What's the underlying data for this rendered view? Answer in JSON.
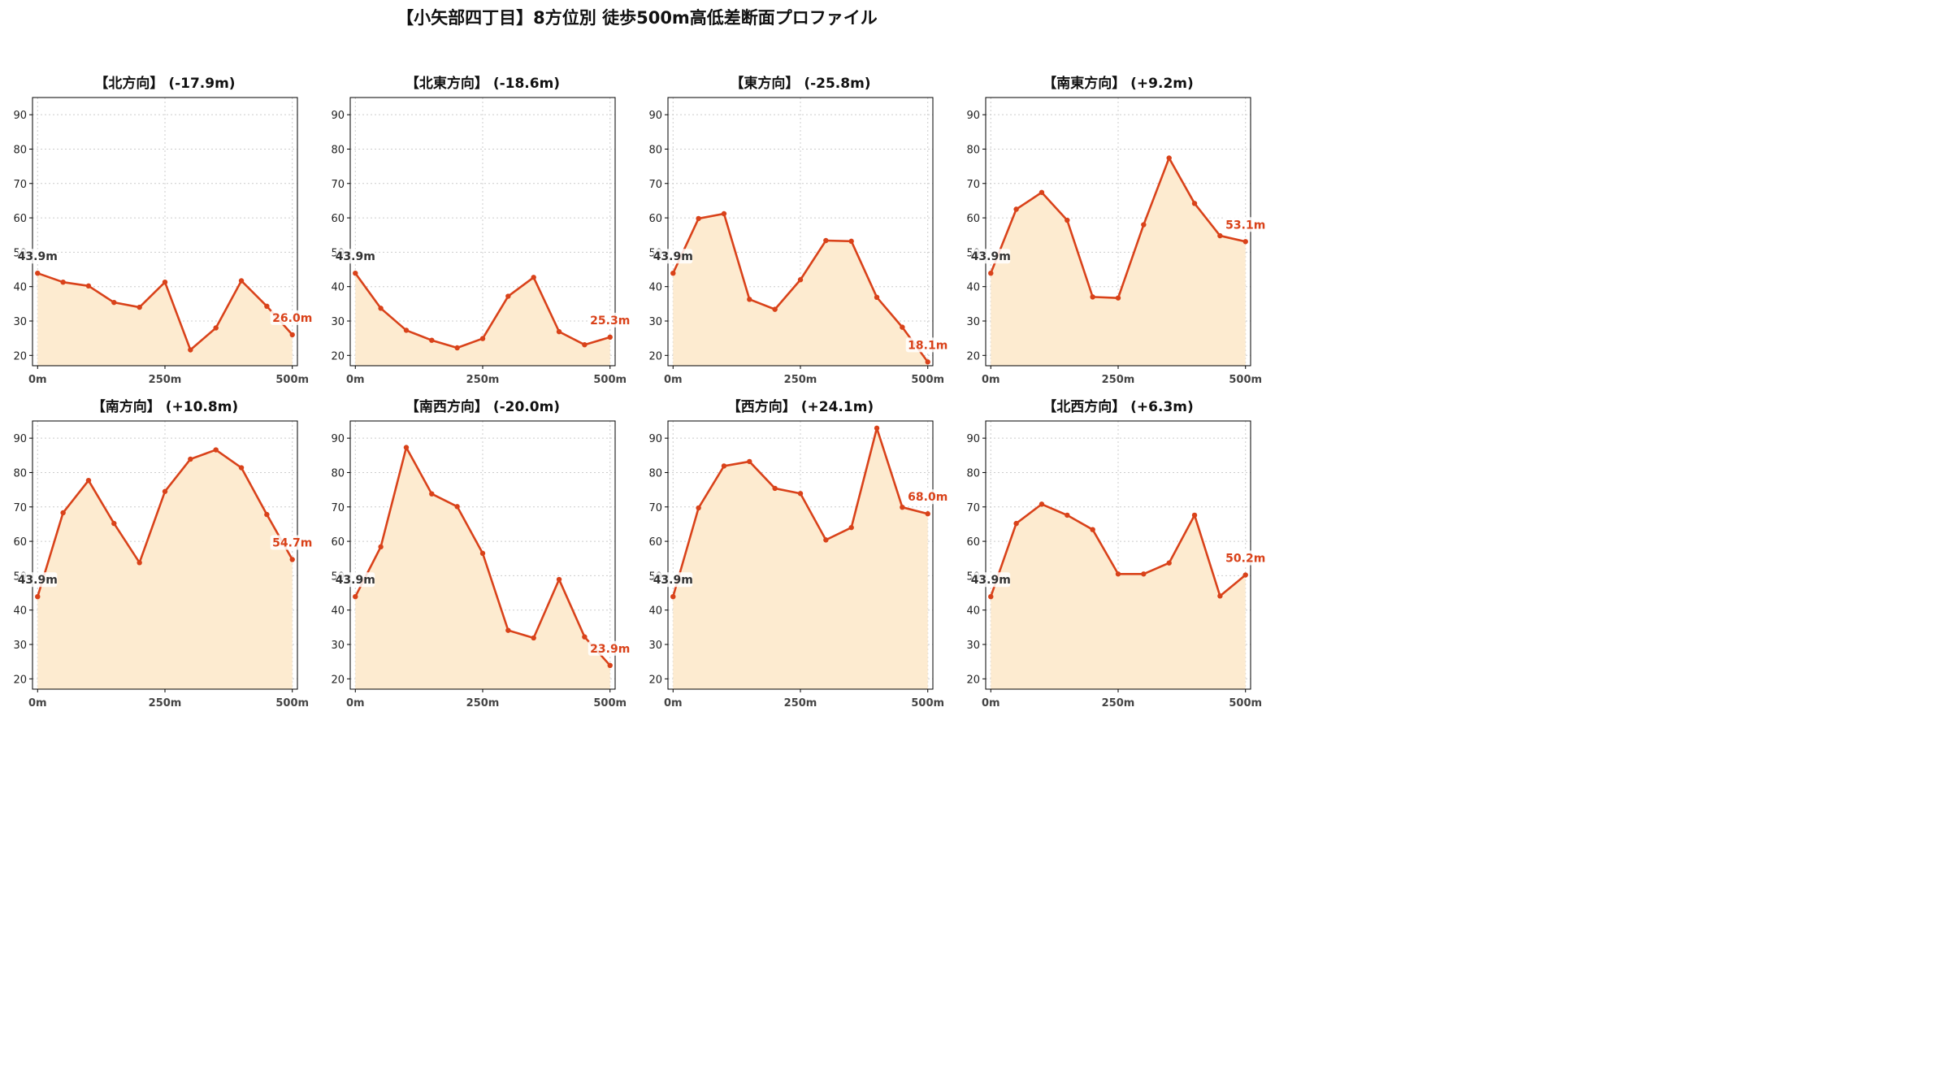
{
  "page": {
    "title": "【小矢部四丁目】8方位別 徒歩500m高低差断面プロファイル"
  },
  "colors": {
    "line": "#d9421a",
    "fill": "#fdebd0",
    "start_label": "#333333",
    "end_label": "#d9421a",
    "grid": "#cccccc"
  },
  "chart_data": [
    {
      "type": "area",
      "title": "【北方向】 (-17.9m)",
      "x": [
        0,
        50,
        100,
        150,
        200,
        250,
        300,
        350,
        400,
        450,
        500
      ],
      "x_ticks": [
        "0m",
        "250m",
        "500m"
      ],
      "x_tick_values": [
        0,
        250,
        500
      ],
      "y_ticks": [
        20,
        30,
        40,
        50,
        60,
        70,
        80,
        90
      ],
      "ylim": [
        17,
        95
      ],
      "xlim": [
        -10,
        510
      ],
      "grid": true,
      "values": [
        43.9,
        41.3,
        40.2,
        35.4,
        34.0,
        41.3,
        21.6,
        28.0,
        41.7,
        34.3,
        26.0
      ],
      "start_label": "43.9m",
      "end_label": "26.0m"
    },
    {
      "type": "area",
      "title": "【北東方向】 (-18.6m)",
      "x": [
        0,
        50,
        100,
        150,
        200,
        250,
        300,
        350,
        400,
        450,
        500
      ],
      "x_ticks": [
        "0m",
        "250m",
        "500m"
      ],
      "x_tick_values": [
        0,
        250,
        500
      ],
      "y_ticks": [
        20,
        30,
        40,
        50,
        60,
        70,
        80,
        90
      ],
      "ylim": [
        17,
        95
      ],
      "xlim": [
        -10,
        510
      ],
      "grid": true,
      "values": [
        43.9,
        33.7,
        27.3,
        24.4,
        22.2,
        24.9,
        37.2,
        42.7,
        26.9,
        23.1,
        25.3
      ],
      "start_label": "43.9m",
      "end_label": "25.3m"
    },
    {
      "type": "area",
      "title": "【東方向】 (-25.8m)",
      "x": [
        0,
        50,
        100,
        150,
        200,
        250,
        300,
        350,
        400,
        450,
        500
      ],
      "x_ticks": [
        "0m",
        "250m",
        "500m"
      ],
      "x_tick_values": [
        0,
        250,
        500
      ],
      "y_ticks": [
        20,
        30,
        40,
        50,
        60,
        70,
        80,
        90
      ],
      "ylim": [
        17,
        95
      ],
      "xlim": [
        -10,
        510
      ],
      "grid": true,
      "values": [
        43.9,
        59.8,
        61.2,
        36.3,
        33.4,
        42.0,
        53.4,
        53.2,
        36.9,
        28.2,
        18.1
      ],
      "start_label": "43.9m",
      "end_label": "18.1m"
    },
    {
      "type": "area",
      "title": "【南東方向】 (+9.2m)",
      "x": [
        0,
        50,
        100,
        150,
        200,
        250,
        300,
        350,
        400,
        450,
        500
      ],
      "x_ticks": [
        "0m",
        "250m",
        "500m"
      ],
      "x_tick_values": [
        0,
        250,
        500
      ],
      "y_ticks": [
        20,
        30,
        40,
        50,
        60,
        70,
        80,
        90
      ],
      "ylim": [
        17,
        95
      ],
      "xlim": [
        -10,
        510
      ],
      "grid": true,
      "values": [
        43.9,
        62.5,
        67.4,
        59.3,
        37.0,
        36.7,
        58.0,
        77.4,
        64.2,
        54.8,
        53.1
      ],
      "start_label": "43.9m",
      "end_label": "53.1m"
    },
    {
      "type": "area",
      "title": "【南方向】 (+10.8m)",
      "x": [
        0,
        50,
        100,
        150,
        200,
        250,
        300,
        350,
        400,
        450,
        500
      ],
      "x_ticks": [
        "0m",
        "250m",
        "500m"
      ],
      "x_tick_values": [
        0,
        250,
        500
      ],
      "y_ticks": [
        20,
        30,
        40,
        50,
        60,
        70,
        80,
        90
      ],
      "ylim": [
        17,
        95
      ],
      "xlim": [
        -10,
        510
      ],
      "grid": true,
      "values": [
        43.9,
        68.3,
        77.7,
        65.2,
        53.8,
        74.5,
        83.9,
        86.6,
        81.4,
        67.8,
        54.7
      ],
      "start_label": "43.9m",
      "end_label": "54.7m"
    },
    {
      "type": "area",
      "title": "【南西方向】 (-20.0m)",
      "x": [
        0,
        50,
        100,
        150,
        200,
        250,
        300,
        350,
        400,
        450,
        500
      ],
      "x_ticks": [
        "0m",
        "250m",
        "500m"
      ],
      "x_tick_values": [
        0,
        250,
        500
      ],
      "y_ticks": [
        20,
        30,
        40,
        50,
        60,
        70,
        80,
        90
      ],
      "ylim": [
        17,
        95
      ],
      "xlim": [
        -10,
        510
      ],
      "grid": true,
      "values": [
        43.9,
        58.4,
        87.3,
        73.8,
        70.1,
        56.5,
        34.1,
        31.9,
        48.9,
        32.2,
        23.9
      ],
      "start_label": "43.9m",
      "end_label": "23.9m"
    },
    {
      "type": "area",
      "title": "【西方向】 (+24.1m)",
      "x": [
        0,
        50,
        100,
        150,
        200,
        250,
        300,
        350,
        400,
        450,
        500
      ],
      "x_ticks": [
        "0m",
        "250m",
        "500m"
      ],
      "x_tick_values": [
        0,
        250,
        500
      ],
      "y_ticks": [
        20,
        30,
        40,
        50,
        60,
        70,
        80,
        90
      ],
      "ylim": [
        17,
        95
      ],
      "xlim": [
        -10,
        510
      ],
      "grid": true,
      "values": [
        43.9,
        69.7,
        81.9,
        83.2,
        75.4,
        73.9,
        60.4,
        64.0,
        92.9,
        69.9,
        68.0
      ],
      "start_label": "43.9m",
      "end_label": "68.0m"
    },
    {
      "type": "area",
      "title": "【北西方向】 (+6.3m)",
      "x": [
        0,
        50,
        100,
        150,
        200,
        250,
        300,
        350,
        400,
        450,
        500
      ],
      "x_ticks": [
        "0m",
        "250m",
        "500m"
      ],
      "x_tick_values": [
        0,
        250,
        500
      ],
      "y_ticks": [
        20,
        30,
        40,
        50,
        60,
        70,
        80,
        90
      ],
      "ylim": [
        17,
        95
      ],
      "xlim": [
        -10,
        510
      ],
      "grid": true,
      "values": [
        43.9,
        65.2,
        70.8,
        67.6,
        63.4,
        50.5,
        50.5,
        53.7,
        67.6,
        44.1,
        50.2
      ],
      "start_label": "43.9m",
      "end_label": "50.2m"
    }
  ]
}
